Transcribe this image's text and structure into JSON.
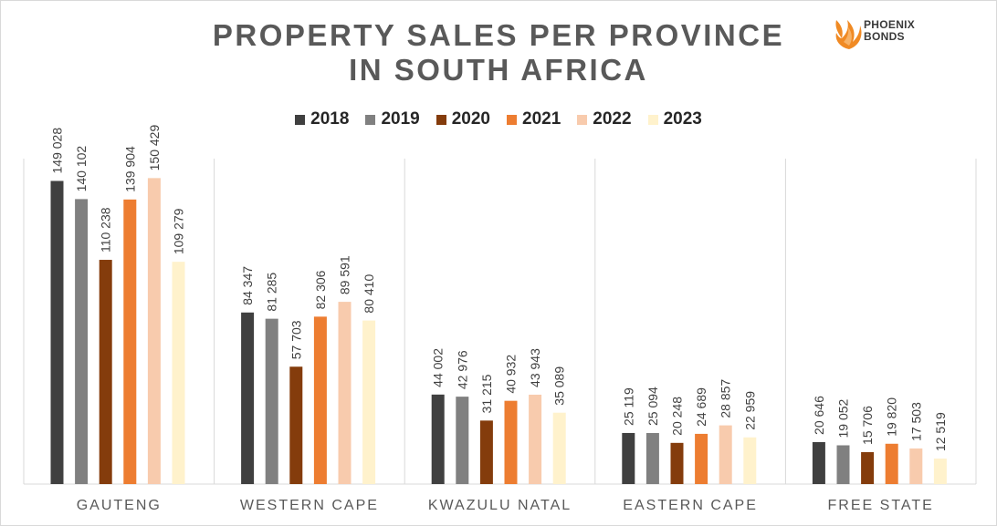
{
  "logo": {
    "line1": "PHOENIX",
    "line2": "BONDS"
  },
  "chart_data": {
    "type": "bar",
    "title_line1": "PROPERTY SALES PER PROVINCE",
    "title_line2": "IN SOUTH AFRICA",
    "categories": [
      "GAUTENG",
      "WESTERN CAPE",
      "KWAZULU NATAL",
      "EASTERN CAPE",
      "FREE STATE"
    ],
    "series": [
      {
        "name": "2018",
        "color": "#404040",
        "values": [
          149028,
          84347,
          44002,
          25119,
          20646
        ],
        "labels": [
          "149 028",
          "84 347",
          "44 002",
          "25 119",
          "20 646"
        ]
      },
      {
        "name": "2019",
        "color": "#808080",
        "values": [
          140102,
          81285,
          42976,
          25094,
          19052
        ],
        "labels": [
          "140 102",
          "81 285",
          "42 976",
          "25 094",
          "19 052"
        ]
      },
      {
        "name": "2020",
        "color": "#843c0c",
        "values": [
          110238,
          57703,
          31215,
          20248,
          15706
        ],
        "labels": [
          "110 238",
          "57 703",
          "31 215",
          "20 248",
          "15 706"
        ]
      },
      {
        "name": "2021",
        "color": "#ed7d31",
        "values": [
          139904,
          82306,
          40932,
          24689,
          19820
        ],
        "labels": [
          "139 904",
          "82 306",
          "40 932",
          "24 689",
          "19 820"
        ]
      },
      {
        "name": "2022",
        "color": "#f8cbad",
        "values": [
          150429,
          89591,
          43943,
          28857,
          17503
        ],
        "labels": [
          "150 429",
          "89 591",
          "43 943",
          "28 857",
          "17 503"
        ]
      },
      {
        "name": "2023",
        "color": "#fff2cc",
        "values": [
          109279,
          80410,
          35089,
          22959,
          12519
        ],
        "labels": [
          "109 279",
          "80 410",
          "35 089",
          "22 959",
          "12 519"
        ]
      }
    ],
    "ylim": [
      0,
      160000
    ],
    "legend_position": "top",
    "grid": false
  }
}
